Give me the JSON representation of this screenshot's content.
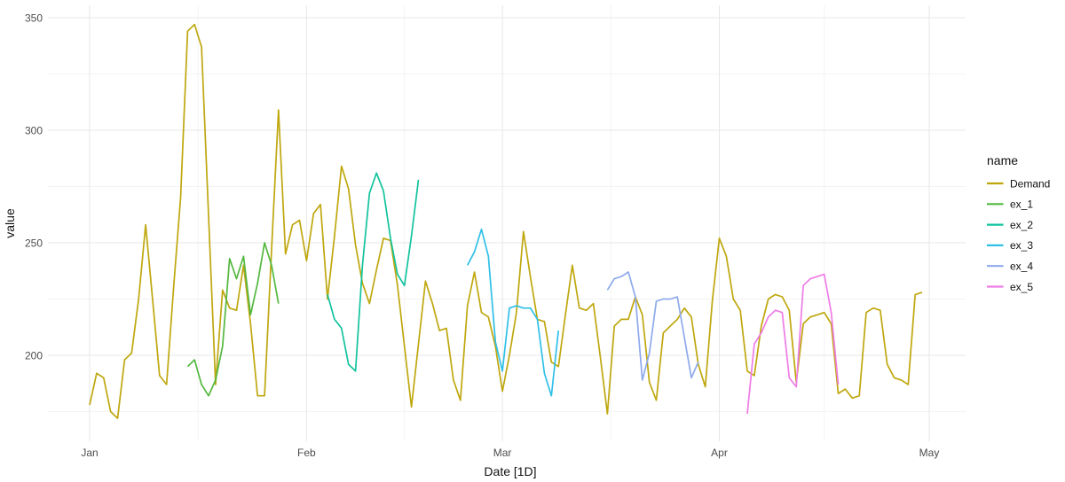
{
  "chart_data": {
    "type": "line",
    "title": "",
    "xlabel": "Date [1D]",
    "ylabel": "value",
    "x_unit": "day",
    "grid": true,
    "ylim": [
      150,
      355
    ],
    "xlim_days": [
      -4,
      126
    ],
    "legend": {
      "title": "name",
      "position": "right"
    },
    "x_axis": {
      "ticks": [
        {
          "label": "Jan",
          "day": 0
        },
        {
          "label": "Feb",
          "day": 31
        },
        {
          "label": "Mar",
          "day": 59
        },
        {
          "label": "Apr",
          "day": 90
        },
        {
          "label": "May",
          "day": 120
        }
      ]
    },
    "y_axis": {
      "ticks": [
        200,
        250,
        300,
        350
      ],
      "minor_ticks": [
        175,
        225,
        275,
        325
      ]
    },
    "series": [
      {
        "name": "Demand",
        "color": "#bfa70e",
        "start_day": 0,
        "values": [
          178,
          192,
          190,
          175,
          172,
          198,
          201,
          225,
          258,
          225,
          191,
          187,
          230,
          270,
          344,
          347,
          337,
          262,
          187,
          229,
          221,
          220,
          240,
          214,
          182,
          182,
          247,
          309,
          245,
          258,
          260,
          242,
          263,
          267,
          225,
          253,
          284,
          274,
          249,
          232,
          223,
          238,
          252,
          251,
          231,
          204,
          177,
          205,
          233,
          223,
          211,
          212,
          189,
          180,
          222,
          237,
          219,
          217,
          204,
          184,
          200,
          219,
          255,
          235,
          216,
          215,
          197,
          195,
          218,
          240,
          221,
          220,
          223,
          199,
          174,
          213,
          216,
          216,
          226,
          218,
          188,
          180,
          210,
          213,
          216,
          221,
          217,
          196,
          186,
          224,
          252,
          244,
          225,
          220,
          193,
          191,
          213,
          225,
          227,
          226,
          220,
          188,
          214,
          217,
          218,
          219,
          214,
          183,
          185,
          181,
          182,
          219,
          221,
          220,
          196,
          190,
          189,
          187,
          227,
          228
        ]
      },
      {
        "name": "ex_1",
        "color": "#53b83f",
        "start_day": 14,
        "values": [
          195,
          198,
          187,
          182,
          189,
          204,
          243,
          234,
          244,
          218,
          232,
          250,
          240,
          223
        ]
      },
      {
        "name": "ex_2",
        "color": "#12c39e",
        "start_day": 34,
        "values": [
          227,
          216,
          212,
          196,
          193,
          240,
          272,
          281,
          273,
          252,
          236,
          231,
          253,
          278
        ]
      },
      {
        "name": "ex_3",
        "color": "#2fc0e8",
        "start_day": 54,
        "values": [
          240,
          246,
          256,
          244,
          206,
          193,
          221,
          222,
          221,
          221,
          216,
          192,
          182,
          211
        ]
      },
      {
        "name": "ex_4",
        "color": "#8ea9ec",
        "start_day": 74,
        "values": [
          229,
          234,
          235,
          237,
          226,
          189,
          201,
          224,
          225,
          225,
          226,
          208,
          190,
          197
        ]
      },
      {
        "name": "ex_5",
        "color": "#ef7ce6",
        "start_day": 94,
        "values": [
          174,
          205,
          210,
          217,
          220,
          219,
          190,
          186,
          231,
          234,
          235,
          236,
          219,
          187
        ]
      }
    ]
  }
}
